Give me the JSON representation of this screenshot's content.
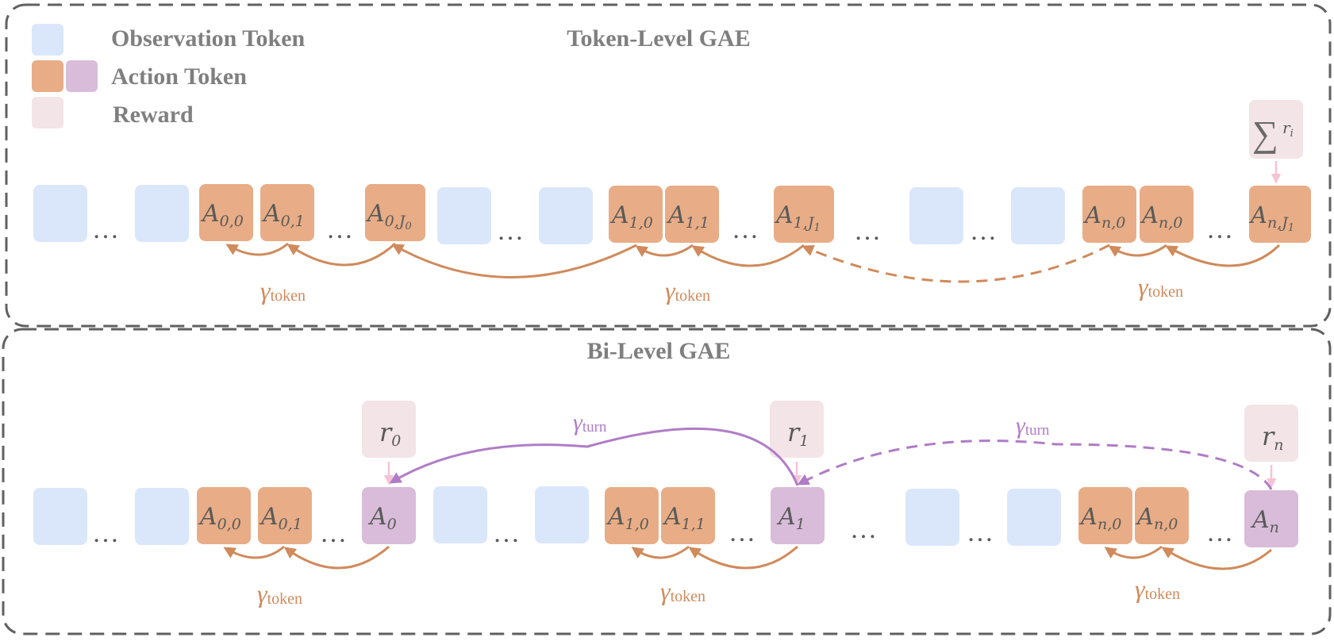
{
  "legend": {
    "observation_label": "Observation Token",
    "action_label": "Action Token",
    "reward_label": "Reward"
  },
  "colors": {
    "observation": "#dae7fb",
    "action": "#e8ad86",
    "action_turn": "#d8bcd9",
    "reward": "#f3e4e7",
    "arrow_token": "#d08a5b",
    "arrow_turn": "#b07cc6",
    "panel_border": "#606060"
  },
  "token_level": {
    "title": "Token-Level GAE",
    "reward_symbol": "∑",
    "reward_sub": "r",
    "reward_sub_index": "i",
    "gamma": "γ",
    "gamma_sub": "token",
    "ellipsis": "…",
    "turns": [
      {
        "a": {
          "main": "A",
          "sub": "0,0"
        },
        "b": {
          "main": "A",
          "sub": "0,1"
        },
        "c": {
          "main": "A",
          "sub": "0,",
          "sub2": "J",
          "sub2_index": "0"
        }
      },
      {
        "a": {
          "main": "A",
          "sub": "1,0"
        },
        "b": {
          "main": "A",
          "sub": "1,1"
        },
        "c": {
          "main": "A",
          "sub": "1,",
          "sub2": "J",
          "sub2_index": "1"
        }
      },
      {
        "a": {
          "main": "A",
          "sub": "n,0"
        },
        "b": {
          "main": "A",
          "sub": "n,0"
        },
        "c": {
          "main": "A",
          "sub": "n,",
          "sub2": "J",
          "sub2_index": "1"
        }
      }
    ]
  },
  "bi_level": {
    "title": "Bi-Level GAE",
    "gamma": "γ",
    "gamma_token_sub": "token",
    "gamma_turn_sub": "turn",
    "ellipsis": "…",
    "turns": [
      {
        "a": {
          "main": "A",
          "sub": "0,0"
        },
        "b": {
          "main": "A",
          "sub": "0,1"
        },
        "c": {
          "main": "A",
          "sub": "0"
        },
        "reward": {
          "main": "r",
          "sub": "0"
        }
      },
      {
        "a": {
          "main": "A",
          "sub": "1,0"
        },
        "b": {
          "main": "A",
          "sub": "1,1"
        },
        "c": {
          "main": "A",
          "sub": "1"
        },
        "reward": {
          "main": "r",
          "sub": "1"
        }
      },
      {
        "a": {
          "main": "A",
          "sub": "n,0"
        },
        "b": {
          "main": "A",
          "sub": "n,0"
        },
        "c": {
          "main": "A",
          "sub": "n"
        },
        "reward": {
          "main": "r",
          "sub": "n"
        }
      }
    ]
  }
}
